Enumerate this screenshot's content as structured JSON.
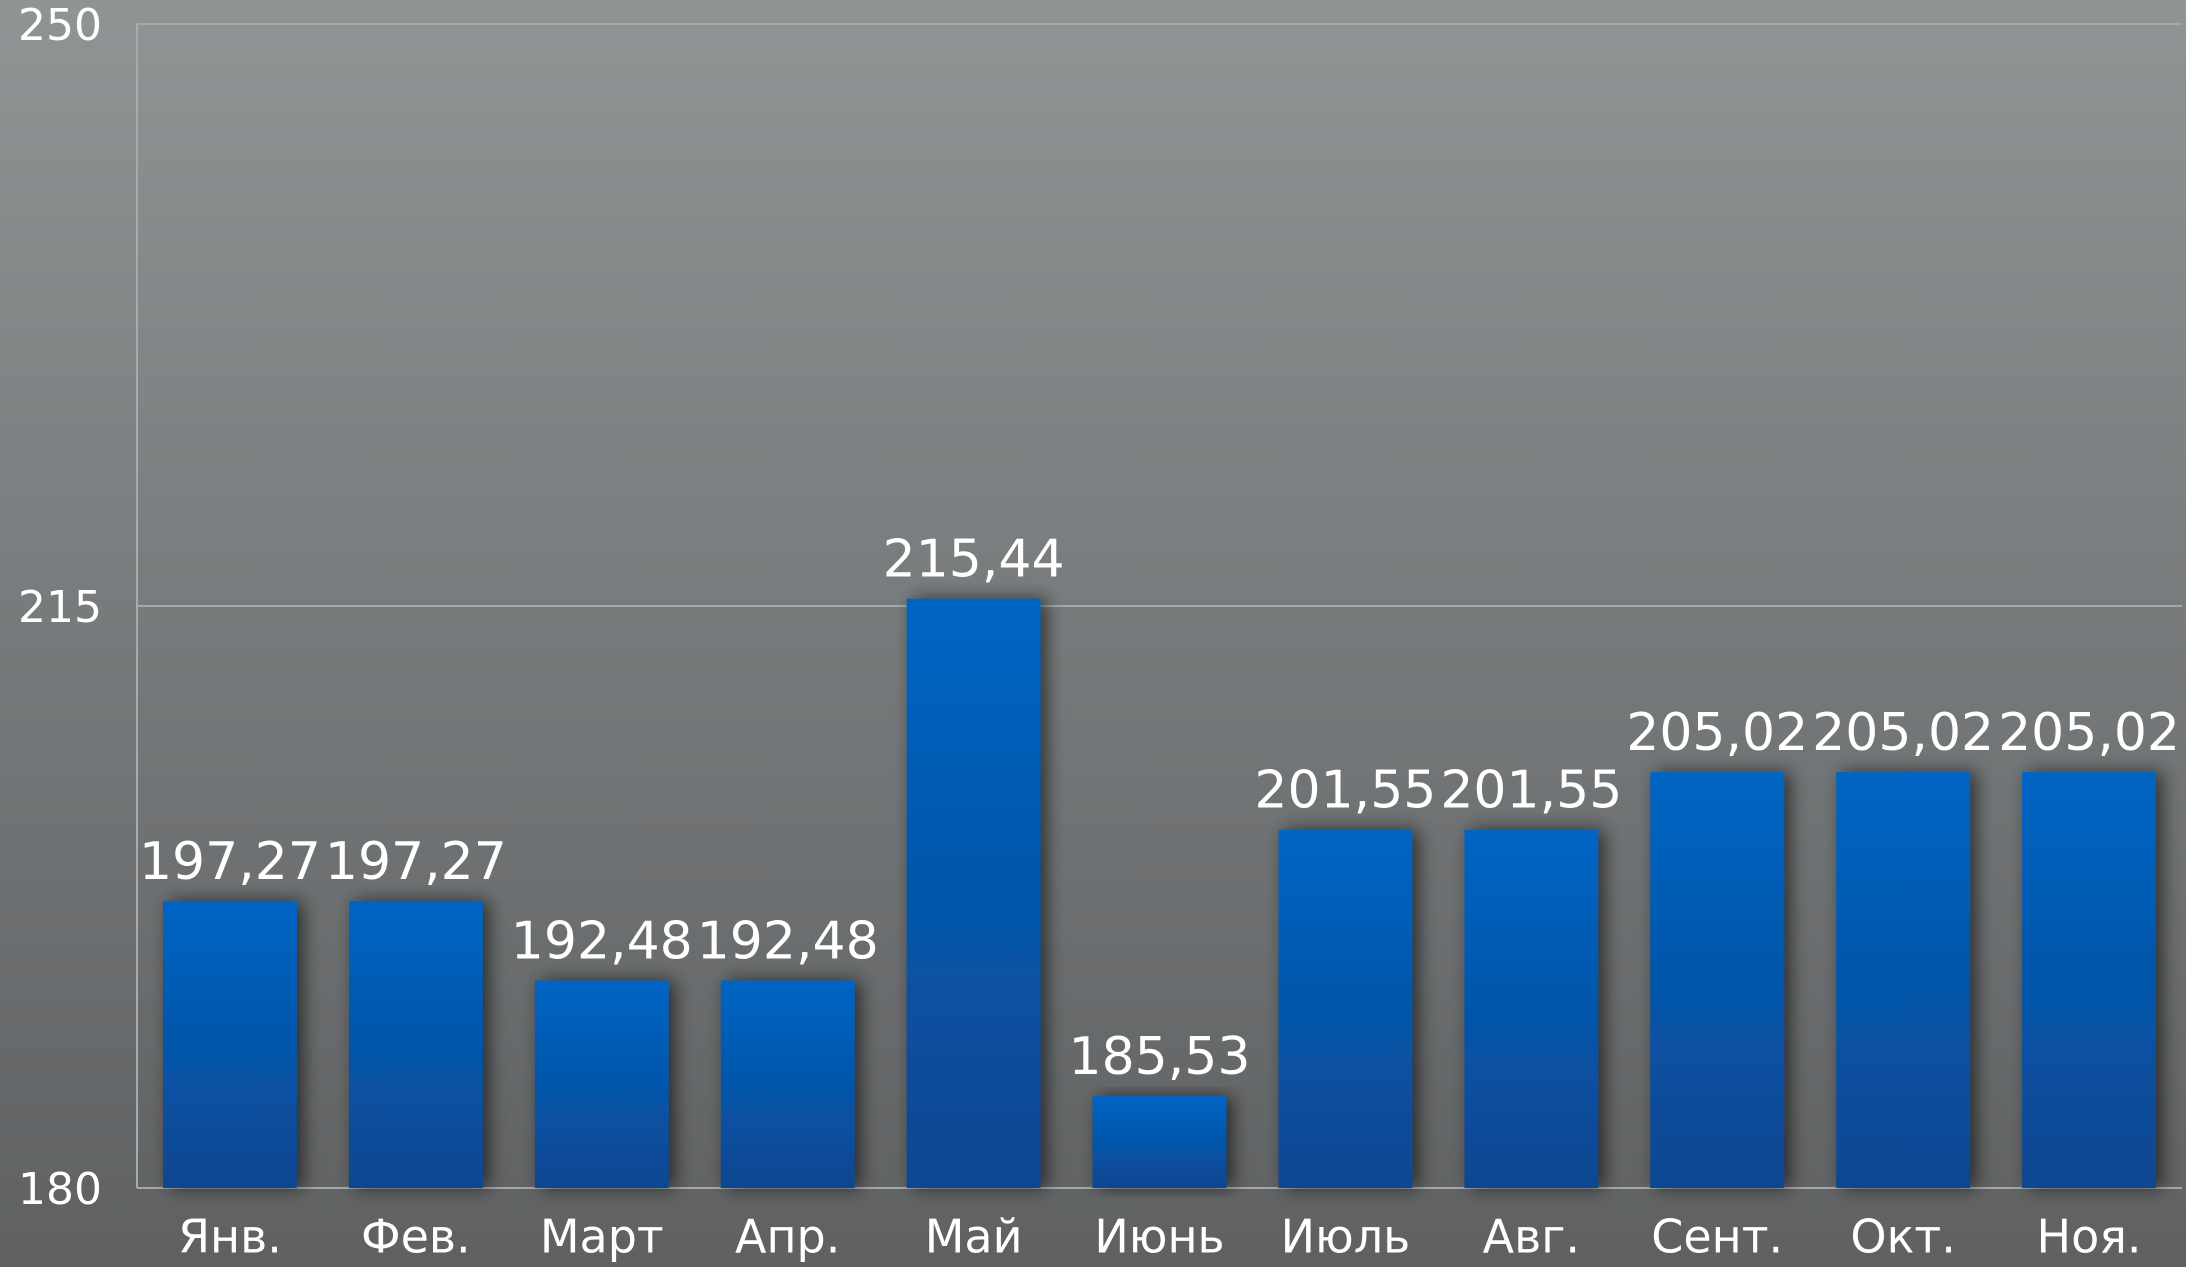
{
  "chart_data": {
    "type": "bar",
    "categories": [
      "Янв.",
      "Фев.",
      "Март",
      "Апр.",
      "Май",
      "Июнь",
      "Июль",
      "Авг.",
      "Сент.",
      "Окт.",
      "Ноя."
    ],
    "values": [
      197.27,
      197.27,
      192.48,
      192.48,
      215.44,
      185.53,
      201.55,
      201.55,
      205.02,
      205.02,
      205.02
    ],
    "value_labels": [
      "197,27",
      "197,27",
      "192,48",
      "192,48",
      "215,44",
      "185,53",
      "201,55",
      "201,55",
      "205,02",
      "205,02",
      "205,02"
    ],
    "color": "#005fbc",
    "ylim": [
      180,
      250
    ],
    "yticks": [
      180,
      215,
      250
    ],
    "grid": true
  }
}
